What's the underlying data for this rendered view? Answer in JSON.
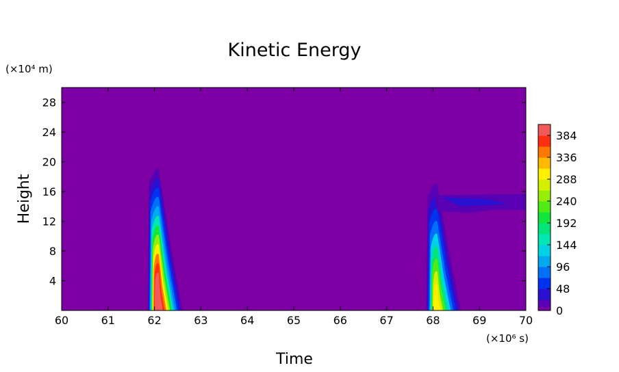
{
  "chart_data": {
    "type": "heatmap",
    "title": "Kinetic Energy",
    "xlabel": "Time",
    "ylabel": "Height",
    "x_unit_label": "(×10⁶ s)",
    "y_unit_label": "(×10⁴ m)",
    "xlim": [
      60,
      70
    ],
    "ylim": [
      0,
      30
    ],
    "x_ticks": [
      "60",
      "61",
      "62",
      "63",
      "64",
      "65",
      "66",
      "67",
      "68",
      "69",
      "70"
    ],
    "y_ticks": [
      "4",
      "8",
      "12",
      "16",
      "20",
      "24",
      "28"
    ],
    "colorbar": {
      "range": [
        0,
        408
      ],
      "ticks": [
        "0",
        "48",
        "96",
        "144",
        "192",
        "240",
        "288",
        "336",
        "384"
      ]
    },
    "background_value": 0,
    "features": [
      {
        "time_center": 62.05,
        "height_top": 19,
        "peak_value": 400,
        "peak_height": 1
      },
      {
        "time_center": 68.05,
        "height_top": 17,
        "peak_value": 280,
        "peak_height": 0.5
      },
      {
        "time_range": [
          68.0,
          70.0
        ],
        "height_range": [
          13.5,
          15.5
        ],
        "value": 20
      }
    ]
  }
}
